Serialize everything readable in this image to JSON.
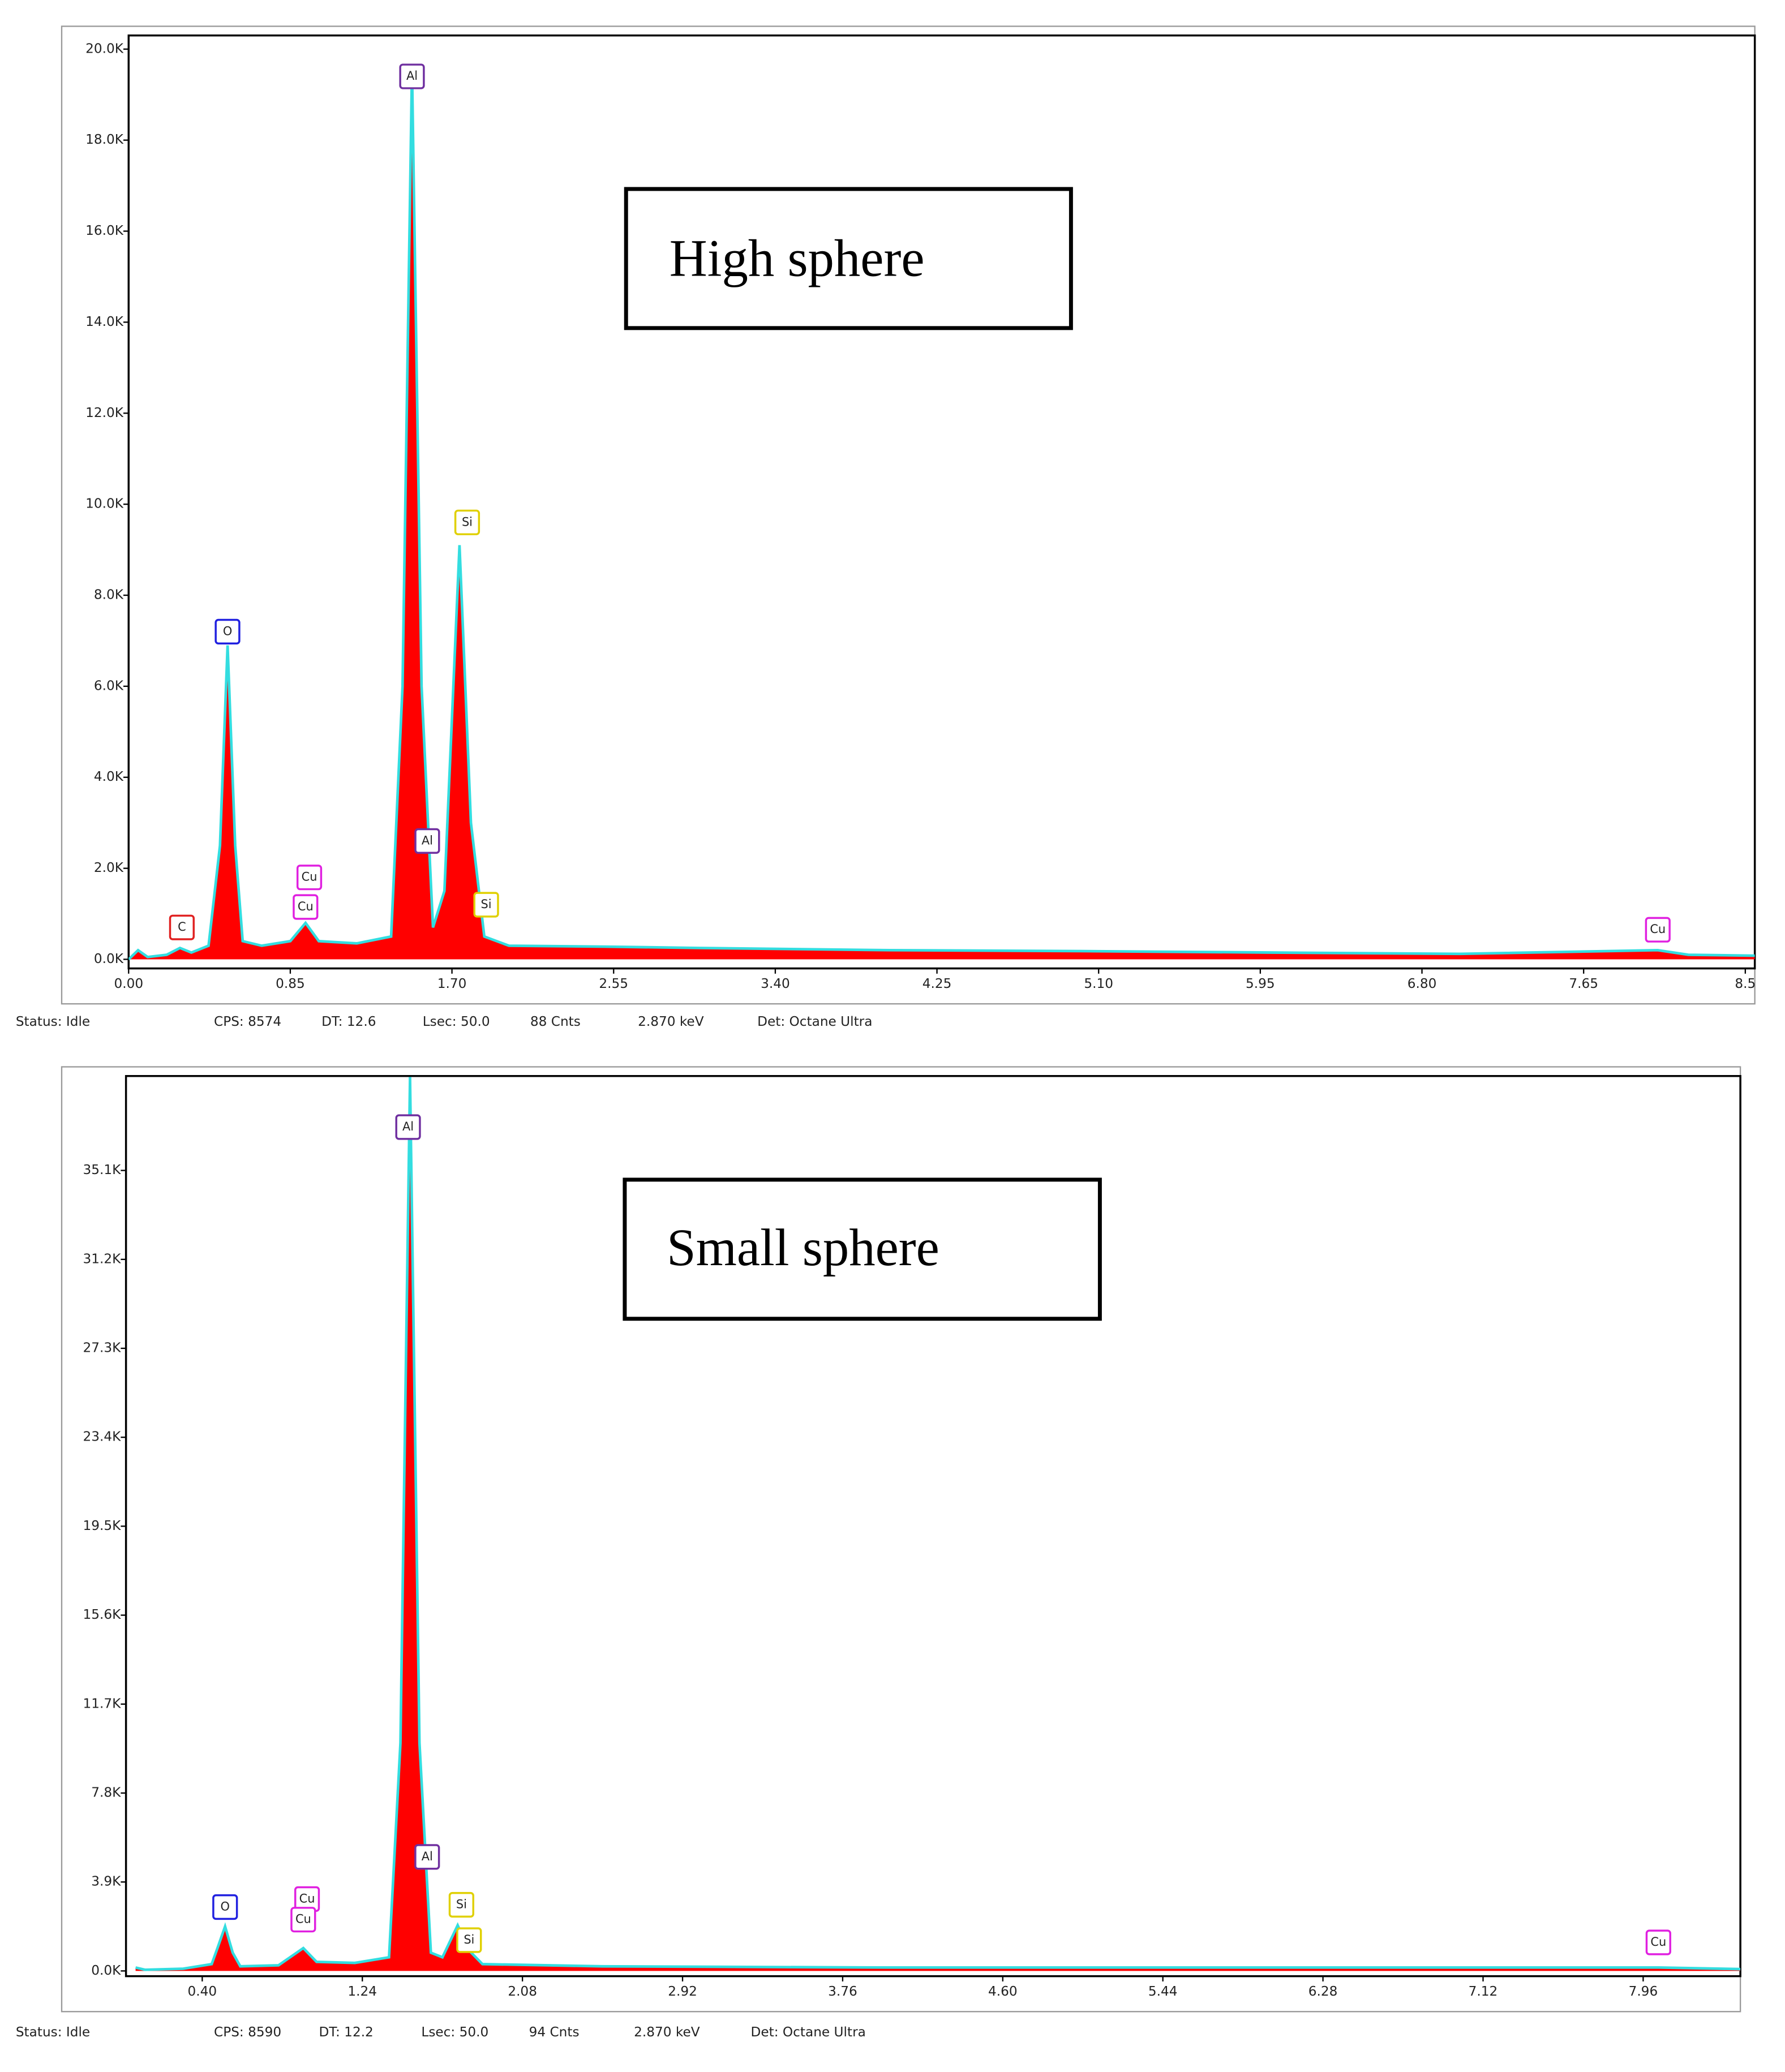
{
  "chart_data": [
    {
      "type": "line",
      "title": "High sphere",
      "fill": "#ff0000",
      "line_color": "#33dde0",
      "x": [
        0,
        0.05,
        0.1,
        0.2,
        0.27,
        0.33,
        0.42,
        0.48,
        0.52,
        0.56,
        0.6,
        0.7,
        0.85,
        0.93,
        1.0,
        1.2,
        1.38,
        1.44,
        1.49,
        1.54,
        1.6,
        1.66,
        1.74,
        1.8,
        1.87,
        2.0,
        2.5,
        3.0,
        4.0,
        5.0,
        6.0,
        7.0,
        8.04,
        8.2,
        8.55
      ],
      "values": [
        0,
        200,
        50,
        100,
        250,
        150,
        300,
        2500,
        6900,
        2500,
        400,
        300,
        400,
        800,
        400,
        350,
        500,
        6000,
        19600,
        6000,
        700,
        1500,
        9100,
        3000,
        500,
        300,
        280,
        250,
        200,
        180,
        150,
        120,
        200,
        100,
        80
      ],
      "xlim": [
        0,
        8.55
      ],
      "ylim": [
        -200,
        20300
      ],
      "xticks": [
        {
          "value": 0,
          "label": "0.00"
        },
        0.85,
        {
          "value": 1.7,
          "label": "1.70"
        },
        2.55,
        {
          "value": 3.4,
          "label": "3.40"
        },
        4.25,
        {
          "value": 5.1,
          "label": "5.10"
        },
        5.95,
        {
          "value": 6.8,
          "label": "6.80"
        },
        7.65,
        8.5
      ],
      "yticks": [
        {
          "value": 0,
          "label": "0.0K"
        },
        {
          "value": 2000,
          "label": "2.0K"
        },
        {
          "value": 4000,
          "label": "4.0K"
        },
        {
          "value": 6000,
          "label": "6.0K"
        },
        {
          "value": 8000,
          "label": "8.0K"
        },
        {
          "value": 10000,
          "label": "10.0K"
        },
        {
          "value": 12000,
          "label": "12.0K"
        },
        {
          "value": 14000,
          "label": "14.0K"
        },
        {
          "value": 16000,
          "label": "16.0K"
        },
        {
          "value": 18000,
          "label": "18.0K"
        },
        {
          "value": 20000,
          "label": "20.0K"
        }
      ],
      "annotations": [
        {
          "text": "C",
          "x": 0.28,
          "y": 700,
          "color": "#e02020"
        },
        {
          "text": "O",
          "x": 0.52,
          "y": 7200,
          "color": "#2020e0"
        },
        {
          "text": "Cu",
          "x": 0.95,
          "y": 1800,
          "color": "#e020e0"
        },
        {
          "text": "Cu",
          "x": 0.93,
          "y": 1150,
          "color": "#e020e0"
        },
        {
          "text": "Al",
          "x": 1.49,
          "y": 19400,
          "color": "#7030a0"
        },
        {
          "text": "Al",
          "x": 1.57,
          "y": 2600,
          "color": "#7030a0"
        },
        {
          "text": "Si",
          "x": 1.78,
          "y": 9600,
          "color": "#e0d000"
        },
        {
          "text": "Si",
          "x": 1.88,
          "y": 1200,
          "color": "#e0d000"
        },
        {
          "text": "Cu",
          "x": 8.04,
          "y": 650,
          "color": "#e020e0"
        }
      ],
      "status": [
        "Status: Idle",
        "CPS: 8574",
        "DT: 12.6",
        "Lsec: 50.0",
        "88 Cnts",
        "2.870 keV",
        "Det: Octane Ultra"
      ]
    },
    {
      "type": "line",
      "title": "Small sphere",
      "fill": "#ff0000",
      "line_color": "#33dde0",
      "x": [
        0.05,
        0.1,
        0.3,
        0.45,
        0.48,
        0.52,
        0.56,
        0.6,
        0.8,
        0.93,
        1.0,
        1.2,
        1.38,
        1.44,
        1.49,
        1.54,
        1.6,
        1.66,
        1.74,
        1.8,
        1.87,
        2.5,
        4.0,
        8.04,
        8.47
      ],
      "values": [
        150,
        50,
        100,
        300,
        1000,
        1950,
        800,
        200,
        250,
        1000,
        400,
        350,
        600,
        10000,
        39200,
        10000,
        800,
        600,
        2000,
        900,
        300,
        200,
        150,
        150,
        80
      ],
      "xlim": [
        0,
        8.47
      ],
      "ylim": [
        -230,
        39240
      ],
      "xticks": [
        {
          "value": 0.4,
          "label": "0.40"
        },
        1.24,
        2.08,
        2.92,
        3.76,
        {
          "value": 4.6,
          "label": "4.60"
        },
        5.44,
        6.28,
        7.12,
        7.96
      ],
      "yticks": [
        {
          "value": 0,
          "label": "0.0K"
        },
        {
          "value": 3900,
          "label": "3.9K"
        },
        {
          "value": 7800,
          "label": "7.8K"
        },
        {
          "value": 11700,
          "label": "11.7K"
        },
        {
          "value": 15600,
          "label": "15.6K"
        },
        {
          "value": 19500,
          "label": "19.5K"
        },
        {
          "value": 23400,
          "label": "23.4K"
        },
        {
          "value": 27300,
          "label": "27.3K"
        },
        {
          "value": 31200,
          "label": "31.2K"
        },
        {
          "value": 35100,
          "label": "35.1K"
        }
      ],
      "annotations": [
        {
          "text": "O",
          "x": 0.52,
          "y": 2800,
          "color": "#2020e0"
        },
        {
          "text": "Cu",
          "x": 0.95,
          "y": 3150,
          "color": "#e020e0"
        },
        {
          "text": "Cu",
          "x": 0.93,
          "y": 2250,
          "color": "#e020e0"
        },
        {
          "text": "Al",
          "x": 1.48,
          "y": 37000,
          "color": "#7030a0"
        },
        {
          "text": "Al",
          "x": 1.58,
          "y": 5000,
          "color": "#7030a0"
        },
        {
          "text": "Si",
          "x": 1.76,
          "y": 2900,
          "color": "#e0d000"
        },
        {
          "text": "Si",
          "x": 1.8,
          "y": 1350,
          "color": "#e0d000"
        },
        {
          "text": "Cu",
          "x": 8.04,
          "y": 1250,
          "color": "#e020e0"
        }
      ],
      "status": [
        "Status: Idle",
        "CPS: 8590",
        "DT: 12.2",
        "Lsec: 50.0",
        "94 Cnts",
        "2.870 keV",
        "Det: Octane Ultra"
      ]
    }
  ]
}
